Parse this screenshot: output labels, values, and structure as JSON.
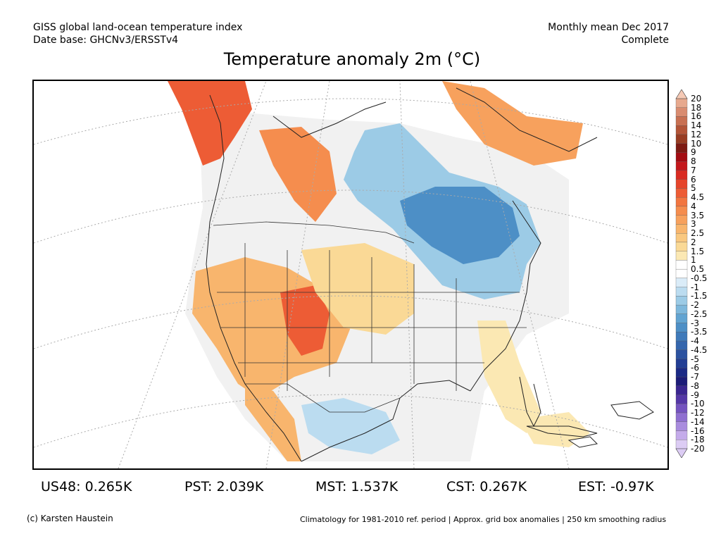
{
  "header": {
    "dataset_line1": "GISS global land-ocean temperature index",
    "dataset_line2": "Date base: GHCNv3/ERSSTv4",
    "period_line1": "Monthly mean Dec 2017",
    "period_line2": "Complete"
  },
  "title": "Temperature anomaly 2m (°C)",
  "colorbar": {
    "steps": [
      {
        "label": "20",
        "color": "#f5c9b5"
      },
      {
        "label": "18",
        "color": "#e7a98e"
      },
      {
        "label": "16",
        "color": "#d98c70"
      },
      {
        "label": "14",
        "color": "#c87052"
      },
      {
        "label": "12",
        "color": "#b35437"
      },
      {
        "label": "10",
        "color": "#983c22"
      },
      {
        "label": "9",
        "color": "#7d1a12"
      },
      {
        "label": "8",
        "color": "#a30c12"
      },
      {
        "label": "7",
        "color": "#c4171b"
      },
      {
        "label": "6",
        "color": "#d92b22"
      },
      {
        "label": "5",
        "color": "#e6452b"
      },
      {
        "label": "4.5",
        "color": "#ed5c35"
      },
      {
        "label": "4",
        "color": "#f27640"
      },
      {
        "label": "3.5",
        "color": "#f58d4e"
      },
      {
        "label": "3",
        "color": "#f7a15d"
      },
      {
        "label": "2.5",
        "color": "#f8b56d"
      },
      {
        "label": "2",
        "color": "#f9c880"
      },
      {
        "label": "1.5",
        "color": "#fad996"
      },
      {
        "label": "1",
        "color": "#fbe8b3"
      },
      {
        "label": "0.5",
        "color": "#ffffff"
      },
      {
        "label": "-0.5",
        "color": "#ffffff"
      },
      {
        "label": "-1",
        "color": "#daecf8"
      },
      {
        "label": "-1.5",
        "color": "#bbdcf0"
      },
      {
        "label": "-2",
        "color": "#9ccbe6"
      },
      {
        "label": "-2.5",
        "color": "#7eb8dc"
      },
      {
        "label": "-3",
        "color": "#62a4d2"
      },
      {
        "label": "-3.5",
        "color": "#4d8fc6"
      },
      {
        "label": "-4",
        "color": "#3f7aba"
      },
      {
        "label": "-4.5",
        "color": "#3566ad"
      },
      {
        "label": "-5",
        "color": "#2c52a0"
      },
      {
        "label": "-6",
        "color": "#223e94"
      },
      {
        "label": "-7",
        "color": "#1b2a86"
      },
      {
        "label": "-8",
        "color": "#1c1c78"
      },
      {
        "label": "-9",
        "color": "#3a2690"
      },
      {
        "label": "-10",
        "color": "#5437a6"
      },
      {
        "label": "-12",
        "color": "#7453bf"
      },
      {
        "label": "-14",
        "color": "#8f6fd0"
      },
      {
        "label": "-16",
        "color": "#a98cde"
      },
      {
        "label": "-18",
        "color": "#c4abea"
      },
      {
        "label": "-20",
        "color": "#dcccf4"
      }
    ]
  },
  "regions": [
    {
      "label": "US48: 0.265K"
    },
    {
      "label": "PST: 2.039K"
    },
    {
      "label": "MST: 1.537K"
    },
    {
      "label": "CST: 0.267K"
    },
    {
      "label": "EST: -0.97K"
    }
  ],
  "footer": {
    "credit": "(c) Karsten Haustein",
    "note": "Climatology for 1981-2010 ref. period | Approx. grid box anomalies | 250 km smoothing radius"
  }
}
